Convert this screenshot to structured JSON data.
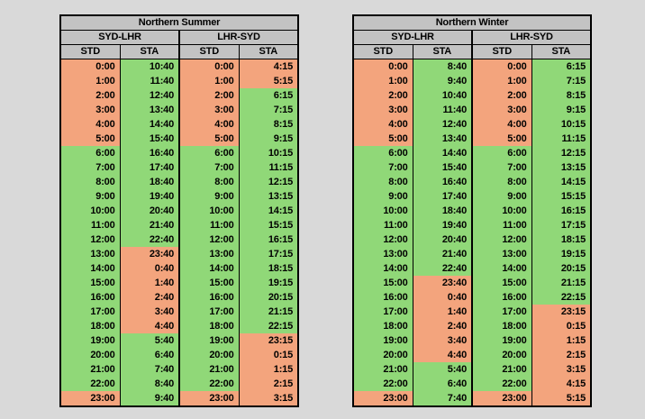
{
  "colors": {
    "page_bg": "#d9d9d9",
    "header_fill": "#c3c3c3",
    "cell_green": "#90d878",
    "cell_salmon": "#f3a47d",
    "border": "#000000"
  },
  "cell_color_codes": {
    "G": "green",
    "S": "salmon"
  },
  "chart_data": [
    {
      "type": "table",
      "title": "Northern Summer",
      "column_groups": [
        {
          "label": "SYD-LHR",
          "span": 2
        },
        {
          "label": "LHR-SYD",
          "span": 2
        }
      ],
      "columns": [
        "STD",
        "STA",
        "STD",
        "STA"
      ],
      "rows": [
        [
          [
            "0:00",
            "S"
          ],
          [
            "10:40",
            "G"
          ],
          [
            "0:00",
            "S"
          ],
          [
            "4:15",
            "S"
          ]
        ],
        [
          [
            "1:00",
            "S"
          ],
          [
            "11:40",
            "G"
          ],
          [
            "1:00",
            "S"
          ],
          [
            "5:15",
            "S"
          ]
        ],
        [
          [
            "2:00",
            "S"
          ],
          [
            "12:40",
            "G"
          ],
          [
            "2:00",
            "S"
          ],
          [
            "6:15",
            "G"
          ]
        ],
        [
          [
            "3:00",
            "S"
          ],
          [
            "13:40",
            "G"
          ],
          [
            "3:00",
            "S"
          ],
          [
            "7:15",
            "G"
          ]
        ],
        [
          [
            "4:00",
            "S"
          ],
          [
            "14:40",
            "G"
          ],
          [
            "4:00",
            "S"
          ],
          [
            "8:15",
            "G"
          ]
        ],
        [
          [
            "5:00",
            "S"
          ],
          [
            "15:40",
            "G"
          ],
          [
            "5:00",
            "S"
          ],
          [
            "9:15",
            "G"
          ]
        ],
        [
          [
            "6:00",
            "G"
          ],
          [
            "16:40",
            "G"
          ],
          [
            "6:00",
            "G"
          ],
          [
            "10:15",
            "G"
          ]
        ],
        [
          [
            "7:00",
            "G"
          ],
          [
            "17:40",
            "G"
          ],
          [
            "7:00",
            "G"
          ],
          [
            "11:15",
            "G"
          ]
        ],
        [
          [
            "8:00",
            "G"
          ],
          [
            "18:40",
            "G"
          ],
          [
            "8:00",
            "G"
          ],
          [
            "12:15",
            "G"
          ]
        ],
        [
          [
            "9:00",
            "G"
          ],
          [
            "19:40",
            "G"
          ],
          [
            "9:00",
            "G"
          ],
          [
            "13:15",
            "G"
          ]
        ],
        [
          [
            "10:00",
            "G"
          ],
          [
            "20:40",
            "G"
          ],
          [
            "10:00",
            "G"
          ],
          [
            "14:15",
            "G"
          ]
        ],
        [
          [
            "11:00",
            "G"
          ],
          [
            "21:40",
            "G"
          ],
          [
            "11:00",
            "G"
          ],
          [
            "15:15",
            "G"
          ]
        ],
        [
          [
            "12:00",
            "G"
          ],
          [
            "22:40",
            "G"
          ],
          [
            "12:00",
            "G"
          ],
          [
            "16:15",
            "G"
          ]
        ],
        [
          [
            "13:00",
            "G"
          ],
          [
            "23:40",
            "S"
          ],
          [
            "13:00",
            "G"
          ],
          [
            "17:15",
            "G"
          ]
        ],
        [
          [
            "14:00",
            "G"
          ],
          [
            "0:40",
            "S"
          ],
          [
            "14:00",
            "G"
          ],
          [
            "18:15",
            "G"
          ]
        ],
        [
          [
            "15:00",
            "G"
          ],
          [
            "1:40",
            "S"
          ],
          [
            "15:00",
            "G"
          ],
          [
            "19:15",
            "G"
          ]
        ],
        [
          [
            "16:00",
            "G"
          ],
          [
            "2:40",
            "S"
          ],
          [
            "16:00",
            "G"
          ],
          [
            "20:15",
            "G"
          ]
        ],
        [
          [
            "17:00",
            "G"
          ],
          [
            "3:40",
            "S"
          ],
          [
            "17:00",
            "G"
          ],
          [
            "21:15",
            "G"
          ]
        ],
        [
          [
            "18:00",
            "G"
          ],
          [
            "4:40",
            "S"
          ],
          [
            "18:00",
            "G"
          ],
          [
            "22:15",
            "G"
          ]
        ],
        [
          [
            "19:00",
            "G"
          ],
          [
            "5:40",
            "G"
          ],
          [
            "19:00",
            "G"
          ],
          [
            "23:15",
            "S"
          ]
        ],
        [
          [
            "20:00",
            "G"
          ],
          [
            "6:40",
            "G"
          ],
          [
            "20:00",
            "G"
          ],
          [
            "0:15",
            "S"
          ]
        ],
        [
          [
            "21:00",
            "G"
          ],
          [
            "7:40",
            "G"
          ],
          [
            "21:00",
            "G"
          ],
          [
            "1:15",
            "S"
          ]
        ],
        [
          [
            "22:00",
            "G"
          ],
          [
            "8:40",
            "G"
          ],
          [
            "22:00",
            "G"
          ],
          [
            "2:15",
            "S"
          ]
        ],
        [
          [
            "23:00",
            "S"
          ],
          [
            "9:40",
            "G"
          ],
          [
            "23:00",
            "S"
          ],
          [
            "3:15",
            "S"
          ]
        ]
      ]
    },
    {
      "type": "table",
      "title": "Northern Winter",
      "column_groups": [
        {
          "label": "SYD-LHR",
          "span": 2
        },
        {
          "label": "LHR-SYD",
          "span": 2
        }
      ],
      "columns": [
        "STD",
        "STA",
        "STD",
        "STA"
      ],
      "rows": [
        [
          [
            "0:00",
            "S"
          ],
          [
            "8:40",
            "G"
          ],
          [
            "0:00",
            "S"
          ],
          [
            "6:15",
            "G"
          ]
        ],
        [
          [
            "1:00",
            "S"
          ],
          [
            "9:40",
            "G"
          ],
          [
            "1:00",
            "S"
          ],
          [
            "7:15",
            "G"
          ]
        ],
        [
          [
            "2:00",
            "S"
          ],
          [
            "10:40",
            "G"
          ],
          [
            "2:00",
            "S"
          ],
          [
            "8:15",
            "G"
          ]
        ],
        [
          [
            "3:00",
            "S"
          ],
          [
            "11:40",
            "G"
          ],
          [
            "3:00",
            "S"
          ],
          [
            "9:15",
            "G"
          ]
        ],
        [
          [
            "4:00",
            "S"
          ],
          [
            "12:40",
            "G"
          ],
          [
            "4:00",
            "S"
          ],
          [
            "10:15",
            "G"
          ]
        ],
        [
          [
            "5:00",
            "S"
          ],
          [
            "13:40",
            "G"
          ],
          [
            "5:00",
            "S"
          ],
          [
            "11:15",
            "G"
          ]
        ],
        [
          [
            "6:00",
            "G"
          ],
          [
            "14:40",
            "G"
          ],
          [
            "6:00",
            "G"
          ],
          [
            "12:15",
            "G"
          ]
        ],
        [
          [
            "7:00",
            "G"
          ],
          [
            "15:40",
            "G"
          ],
          [
            "7:00",
            "G"
          ],
          [
            "13:15",
            "G"
          ]
        ],
        [
          [
            "8:00",
            "G"
          ],
          [
            "16:40",
            "G"
          ],
          [
            "8:00",
            "G"
          ],
          [
            "14:15",
            "G"
          ]
        ],
        [
          [
            "9:00",
            "G"
          ],
          [
            "17:40",
            "G"
          ],
          [
            "9:00",
            "G"
          ],
          [
            "15:15",
            "G"
          ]
        ],
        [
          [
            "10:00",
            "G"
          ],
          [
            "18:40",
            "G"
          ],
          [
            "10:00",
            "G"
          ],
          [
            "16:15",
            "G"
          ]
        ],
        [
          [
            "11:00",
            "G"
          ],
          [
            "19:40",
            "G"
          ],
          [
            "11:00",
            "G"
          ],
          [
            "17:15",
            "G"
          ]
        ],
        [
          [
            "12:00",
            "G"
          ],
          [
            "20:40",
            "G"
          ],
          [
            "12:00",
            "G"
          ],
          [
            "18:15",
            "G"
          ]
        ],
        [
          [
            "13:00",
            "G"
          ],
          [
            "21:40",
            "G"
          ],
          [
            "13:00",
            "G"
          ],
          [
            "19:15",
            "G"
          ]
        ],
        [
          [
            "14:00",
            "G"
          ],
          [
            "22:40",
            "G"
          ],
          [
            "14:00",
            "G"
          ],
          [
            "20:15",
            "G"
          ]
        ],
        [
          [
            "15:00",
            "G"
          ],
          [
            "23:40",
            "S"
          ],
          [
            "15:00",
            "G"
          ],
          [
            "21:15",
            "G"
          ]
        ],
        [
          [
            "16:00",
            "G"
          ],
          [
            "0:40",
            "S"
          ],
          [
            "16:00",
            "G"
          ],
          [
            "22:15",
            "G"
          ]
        ],
        [
          [
            "17:00",
            "G"
          ],
          [
            "1:40",
            "S"
          ],
          [
            "17:00",
            "G"
          ],
          [
            "23:15",
            "S"
          ]
        ],
        [
          [
            "18:00",
            "G"
          ],
          [
            "2:40",
            "S"
          ],
          [
            "18:00",
            "G"
          ],
          [
            "0:15",
            "S"
          ]
        ],
        [
          [
            "19:00",
            "G"
          ],
          [
            "3:40",
            "S"
          ],
          [
            "19:00",
            "G"
          ],
          [
            "1:15",
            "S"
          ]
        ],
        [
          [
            "20:00",
            "G"
          ],
          [
            "4:40",
            "S"
          ],
          [
            "20:00",
            "G"
          ],
          [
            "2:15",
            "S"
          ]
        ],
        [
          [
            "21:00",
            "G"
          ],
          [
            "5:40",
            "G"
          ],
          [
            "21:00",
            "G"
          ],
          [
            "3:15",
            "S"
          ]
        ],
        [
          [
            "22:00",
            "G"
          ],
          [
            "6:40",
            "G"
          ],
          [
            "22:00",
            "G"
          ],
          [
            "4:15",
            "S"
          ]
        ],
        [
          [
            "23:00",
            "S"
          ],
          [
            "7:40",
            "G"
          ],
          [
            "23:00",
            "S"
          ],
          [
            "5:15",
            "S"
          ]
        ]
      ]
    }
  ]
}
